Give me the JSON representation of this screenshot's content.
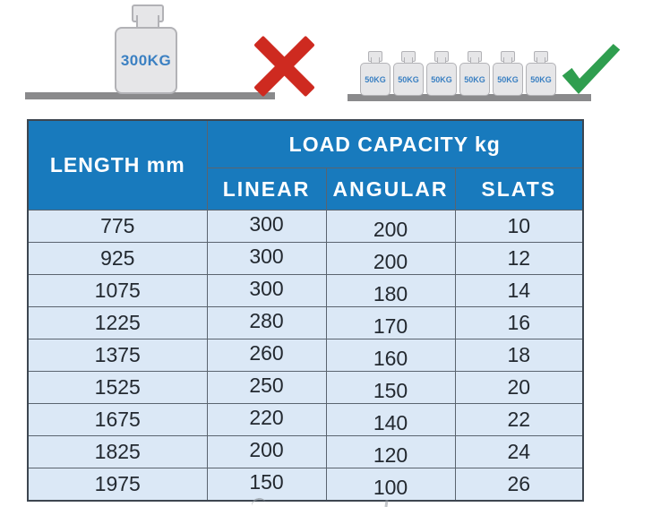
{
  "colors": {
    "header_blue": "#187abd",
    "row_bg": "#dbe8f6",
    "border_dark": "#3d4650",
    "grid_line": "#5a646f",
    "body_text": "#232930",
    "weight_fill": "#e6e6e8",
    "weight_border": "#b2b2b6",
    "shelf_gray": "#8a8a8c",
    "label_blue": "#3b80c2",
    "cross_red": "#ce2a20",
    "check_green": "#2f9e4f"
  },
  "illustration": {
    "wrong_weight_label": "300KG",
    "ok_weight_label": "50KG",
    "ok_weight_count": 6
  },
  "table": {
    "length_header": "LENGTH mm",
    "capacity_header": "LOAD CAPACITY kg",
    "columns": [
      "LINEAR",
      "ANGULAR",
      "SLATS"
    ]
  },
  "chart_data": {
    "type": "table",
    "title": "LOAD CAPACITY kg",
    "columns": [
      "LENGTH mm",
      "LINEAR",
      "ANGULAR",
      "SLATS"
    ],
    "rows": [
      [
        "775",
        "300",
        "200",
        "10"
      ],
      [
        "925",
        "300",
        "200",
        "12"
      ],
      [
        "1075",
        "300",
        "180",
        "14"
      ],
      [
        "1225",
        "280",
        "170",
        "16"
      ],
      [
        "1375",
        "260",
        "160",
        "18"
      ],
      [
        "1525",
        "250",
        "150",
        "20"
      ],
      [
        "1675",
        "220",
        "140",
        "22"
      ],
      [
        "1825",
        "200",
        "120",
        "24"
      ],
      [
        "1975",
        "150",
        "100",
        "26"
      ]
    ]
  }
}
